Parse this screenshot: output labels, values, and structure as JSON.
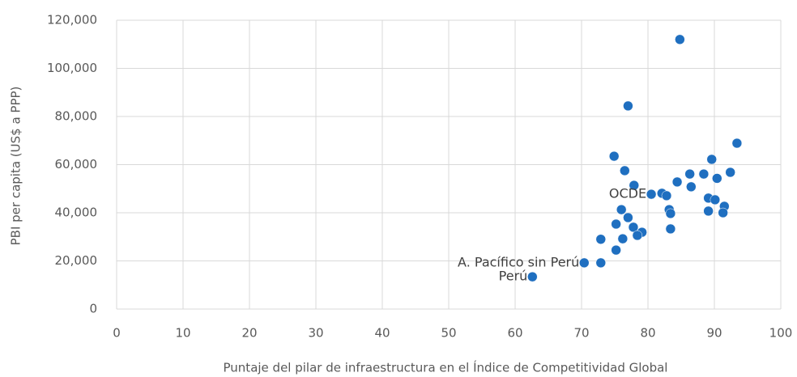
{
  "chart_data": {
    "type": "scatter",
    "x_label": "Puntaje del pilar de infraestructura en el Índice de Competitividad Global",
    "y_label": "PBI per capita (US$ a PPP)",
    "x": [
      84.8,
      77.0,
      93.4,
      74.9,
      89.6,
      76.5,
      86.3,
      88.4,
      92.4,
      90.4,
      84.4,
      77.9,
      86.5,
      80.5,
      82.1,
      82.8,
      89.1,
      90.1,
      91.5,
      83.2,
      76.0,
      89.1,
      91.3,
      83.4,
      77.0,
      75.2,
      77.8,
      83.4,
      79.1,
      78.4,
      76.2,
      72.9,
      75.2,
      70.4,
      72.9,
      62.6
    ],
    "y": [
      112000,
      84400,
      68900,
      63500,
      62200,
      57500,
      56100,
      56100,
      56800,
      54300,
      52800,
      51400,
      50800,
      47700,
      48100,
      47100,
      46100,
      45400,
      42700,
      41300,
      41300,
      40700,
      40000,
      39700,
      38000,
      35300,
      34000,
      33300,
      31900,
      30600,
      29200,
      29000,
      24500,
      19200,
      19200,
      13400
    ],
    "point_labels": [
      null,
      null,
      null,
      null,
      null,
      null,
      null,
      null,
      null,
      null,
      null,
      null,
      null,
      "OCDE",
      null,
      null,
      null,
      null,
      null,
      null,
      null,
      null,
      null,
      null,
      null,
      null,
      null,
      null,
      null,
      null,
      null,
      null,
      null,
      "A. Pacífico sin Perú",
      null,
      "Perú"
    ],
    "color": "#1f6fc0",
    "xlim": [
      0,
      100
    ],
    "xticks": [
      0,
      10,
      20,
      30,
      40,
      50,
      60,
      70,
      80,
      90,
      100
    ],
    "ylim": [
      0,
      120000
    ],
    "yticks": [
      0,
      {
        "value": 20000,
        "label": "20,000"
      },
      {
        "value": 40000,
        "label": "40,000"
      },
      {
        "value": 60000,
        "label": "60,000"
      },
      {
        "value": 80000,
        "label": "80,000"
      },
      {
        "value": 100000,
        "label": "100,000"
      },
      {
        "value": 120000,
        "label": "120,000"
      }
    ],
    "grid": true
  }
}
